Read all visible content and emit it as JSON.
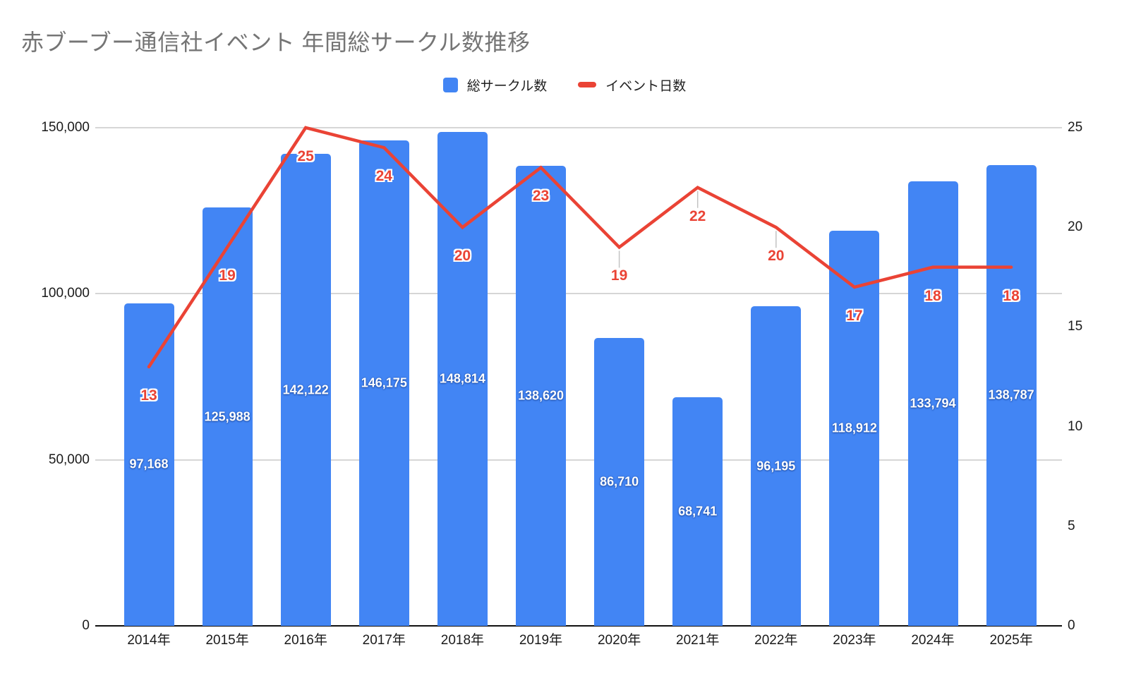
{
  "title": "赤ブーブー通信社イベント 年間総サークル数推移",
  "legend": {
    "items": [
      {
        "label": "総サークル数",
        "color": "#4285F4",
        "shape": "square"
      },
      {
        "label": "イベント日数",
        "color": "#EA4335",
        "shape": "line"
      }
    ]
  },
  "colors": {
    "bar": "#4285F4",
    "line": "#EA4335",
    "title_text": "#757575",
    "axis_text": "#1a1a1a",
    "gridline": "#d6d6d6",
    "baseline": "#111111",
    "bar_label_text": "#ffffff",
    "background": "#ffffff"
  },
  "chart_data": {
    "type": "combo",
    "categories": [
      "2014年",
      "2015年",
      "2016年",
      "2017年",
      "2018年",
      "2019年",
      "2020年",
      "2021年",
      "2022年",
      "2023年",
      "2024年",
      "2025年"
    ],
    "series": [
      {
        "name": "総サークル数",
        "type": "bar",
        "axis": "left",
        "color": "#4285F4",
        "values": [
          97168,
          125988,
          142122,
          146175,
          148814,
          138620,
          86710,
          68741,
          96195,
          118912,
          133794,
          138787
        ],
        "labels": [
          "97,168",
          "125,988",
          "142,122",
          "146,175",
          "148,814",
          "138,620",
          "86,710",
          "68,741",
          "96,195",
          "118,912",
          "133,794",
          "138,787"
        ]
      },
      {
        "name": "イベント日数",
        "type": "line",
        "axis": "right",
        "color": "#EA4335",
        "values": [
          13,
          19,
          25,
          24,
          20,
          23,
          19,
          22,
          20,
          17,
          18,
          18
        ],
        "labels": [
          "13",
          "19",
          "25",
          "24",
          "20",
          "23",
          "19",
          "22",
          "20",
          "17",
          "18",
          "18"
        ]
      }
    ],
    "left_axis": {
      "min": 0,
      "max": 150000,
      "ticks": [
        {
          "v": 0,
          "label": "0"
        },
        {
          "v": 50000,
          "label": "50,000"
        },
        {
          "v": 100000,
          "label": "100,000"
        },
        {
          "v": 150000,
          "label": "150,000"
        }
      ]
    },
    "right_axis": {
      "min": 0,
      "max": 25,
      "ticks": [
        {
          "v": 0,
          "label": "0"
        },
        {
          "v": 5,
          "label": "5"
        },
        {
          "v": 10,
          "label": "10"
        },
        {
          "v": 15,
          "label": "15"
        },
        {
          "v": 20,
          "label": "20"
        },
        {
          "v": 25,
          "label": "25"
        }
      ]
    },
    "grid": true,
    "legend_position": "top"
  }
}
